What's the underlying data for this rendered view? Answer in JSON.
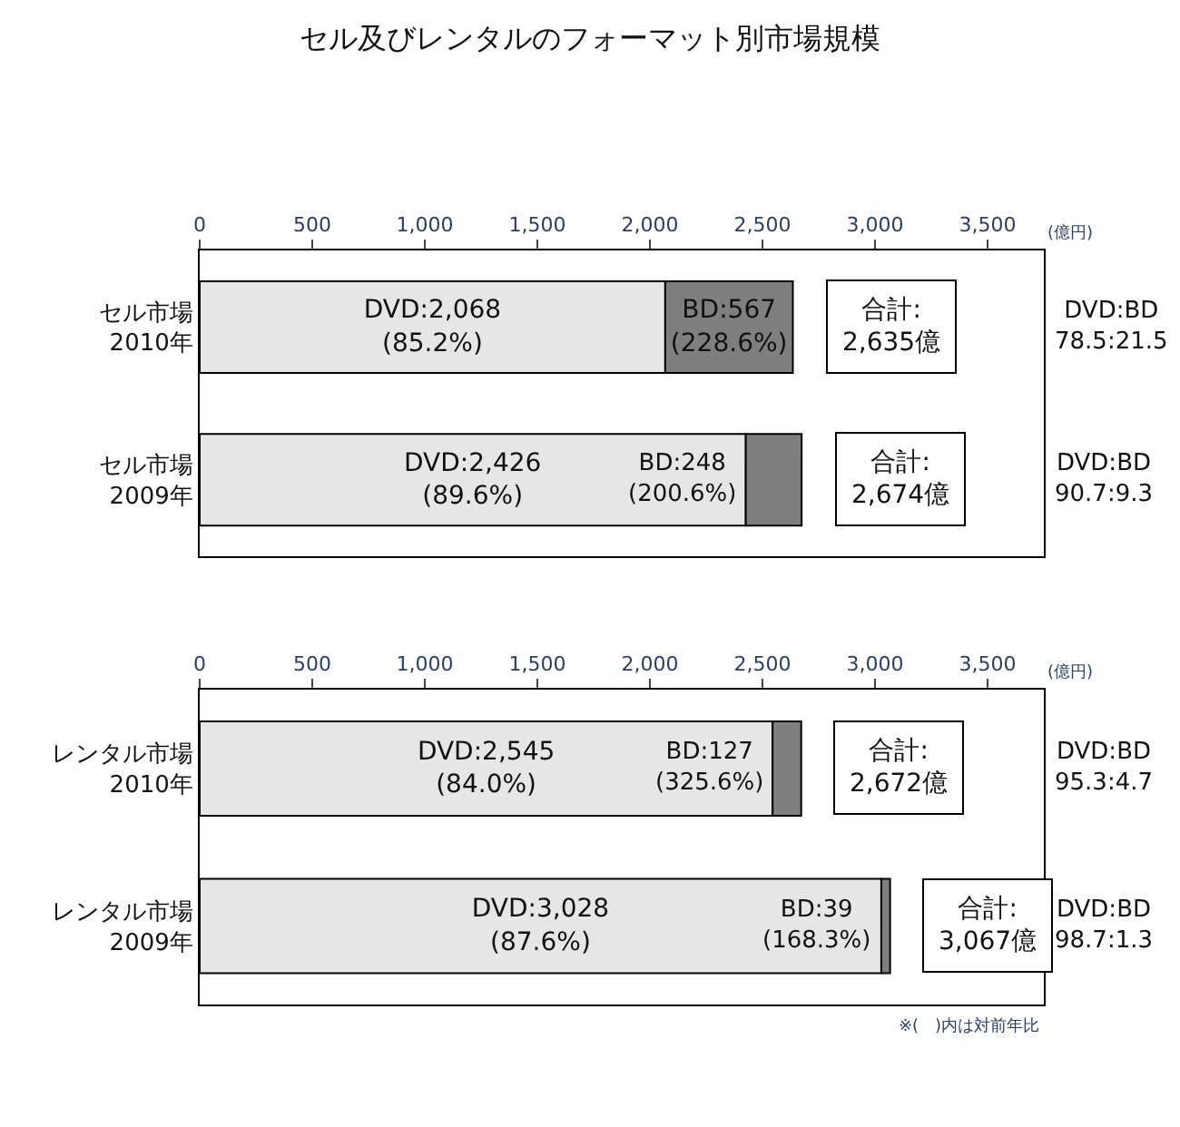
{
  "chart_data": [
    {
      "type": "bar",
      "orientation": "horizontal",
      "stacked": true,
      "title": "セル及びレンタルのフォーマット別市場規模",
      "categories": [
        "セル市場\n2010年",
        "セル市場\n2009年"
      ],
      "series": [
        {
          "name": null,
          "color": "#e6e6e6",
          "values": [
            2068,
            2426
          ],
          "value_labels": [
            "DVD:2,068\n(85.2%)",
            "DVD:2,426\n(89.6%)"
          ]
        },
        {
          "name": null,
          "color": "#7f7f7f",
          "values": [
            567,
            248
          ],
          "value_labels": [
            "BD:567\n(228.6%)",
            "BD:248\n(200.6%)"
          ]
        }
      ],
      "totals": [
        "合計:\n2,635億",
        "合計:\n2,674億"
      ],
      "xlim": [
        0,
        3750
      ],
      "xticks": [
        0,
        500,
        {
          "value": 1000,
          "label": "1,000"
        },
        {
          "value": 1500,
          "label": "1,500"
        },
        {
          "value": 2000,
          "label": "2,000"
        },
        {
          "value": 2500,
          "label": "2,500"
        },
        {
          "value": 3000,
          "label": "3,000"
        },
        {
          "value": 3500,
          "label": "3,500"
        }
      ],
      "annotations": [
        "(億円)",
        "DVD:BD\n78.5:21.5",
        "DVD:BD\n90.7:9.3"
      ]
    },
    {
      "type": "bar",
      "orientation": "horizontal",
      "stacked": true,
      "categories": [
        "レンタル市場\n2010年",
        "レンタル市場\n2009年"
      ],
      "series": [
        {
          "name": null,
          "color": "#e6e6e6",
          "values": [
            2545,
            3028
          ],
          "value_labels": [
            "DVD:2,545\n(84.0%)",
            "DVD:3,028\n(87.6%)"
          ]
        },
        {
          "name": null,
          "color": "#7f7f7f",
          "values": [
            127,
            39
          ],
          "value_labels": [
            "BD:127\n(325.6%)",
            "BD:39\n(168.3%)"
          ]
        }
      ],
      "totals": [
        "合計:\n2,672億",
        "合計:\n3,067億"
      ],
      "xlim": [
        0,
        3750
      ],
      "xticks": [
        0,
        500,
        {
          "value": 1000,
          "label": "1,000"
        },
        {
          "value": 1500,
          "label": "1,500"
        },
        {
          "value": 2000,
          "label": "2,000"
        },
        {
          "value": 2500,
          "label": "2,500"
        },
        {
          "value": 3000,
          "label": "3,000"
        },
        {
          "value": 3500,
          "label": "3,500"
        }
      ],
      "annotations": [
        "(億円)",
        "DVD:BD\n95.3:4.7",
        "DVD:BD\n98.7:1.3",
        "※(　)内は対前年比"
      ]
    }
  ]
}
